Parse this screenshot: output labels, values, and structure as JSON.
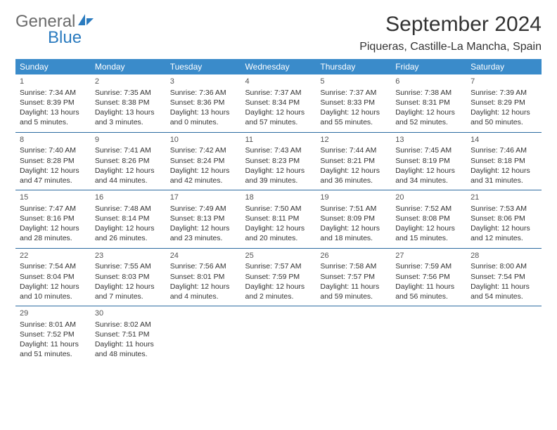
{
  "brand": {
    "part1": "General",
    "part2": "Blue"
  },
  "title": "September 2024",
  "location": "Piqueras, Castille-La Mancha, Spain",
  "header_bg": "#3a8bca",
  "header_fg": "#ffffff",
  "rule_color": "#2b6aa0",
  "weekdays": [
    "Sunday",
    "Monday",
    "Tuesday",
    "Wednesday",
    "Thursday",
    "Friday",
    "Saturday"
  ],
  "weeks": [
    [
      {
        "n": "1",
        "sr": "7:34 AM",
        "ss": "8:39 PM",
        "dl": "13 hours and 5 minutes."
      },
      {
        "n": "2",
        "sr": "7:35 AM",
        "ss": "8:38 PM",
        "dl": "13 hours and 3 minutes."
      },
      {
        "n": "3",
        "sr": "7:36 AM",
        "ss": "8:36 PM",
        "dl": "13 hours and 0 minutes."
      },
      {
        "n": "4",
        "sr": "7:37 AM",
        "ss": "8:34 PM",
        "dl": "12 hours and 57 minutes."
      },
      {
        "n": "5",
        "sr": "7:37 AM",
        "ss": "8:33 PM",
        "dl": "12 hours and 55 minutes."
      },
      {
        "n": "6",
        "sr": "7:38 AM",
        "ss": "8:31 PM",
        "dl": "12 hours and 52 minutes."
      },
      {
        "n": "7",
        "sr": "7:39 AM",
        "ss": "8:29 PM",
        "dl": "12 hours and 50 minutes."
      }
    ],
    [
      {
        "n": "8",
        "sr": "7:40 AM",
        "ss": "8:28 PM",
        "dl": "12 hours and 47 minutes."
      },
      {
        "n": "9",
        "sr": "7:41 AM",
        "ss": "8:26 PM",
        "dl": "12 hours and 44 minutes."
      },
      {
        "n": "10",
        "sr": "7:42 AM",
        "ss": "8:24 PM",
        "dl": "12 hours and 42 minutes."
      },
      {
        "n": "11",
        "sr": "7:43 AM",
        "ss": "8:23 PM",
        "dl": "12 hours and 39 minutes."
      },
      {
        "n": "12",
        "sr": "7:44 AM",
        "ss": "8:21 PM",
        "dl": "12 hours and 36 minutes."
      },
      {
        "n": "13",
        "sr": "7:45 AM",
        "ss": "8:19 PM",
        "dl": "12 hours and 34 minutes."
      },
      {
        "n": "14",
        "sr": "7:46 AM",
        "ss": "8:18 PM",
        "dl": "12 hours and 31 minutes."
      }
    ],
    [
      {
        "n": "15",
        "sr": "7:47 AM",
        "ss": "8:16 PM",
        "dl": "12 hours and 28 minutes."
      },
      {
        "n": "16",
        "sr": "7:48 AM",
        "ss": "8:14 PM",
        "dl": "12 hours and 26 minutes."
      },
      {
        "n": "17",
        "sr": "7:49 AM",
        "ss": "8:13 PM",
        "dl": "12 hours and 23 minutes."
      },
      {
        "n": "18",
        "sr": "7:50 AM",
        "ss": "8:11 PM",
        "dl": "12 hours and 20 minutes."
      },
      {
        "n": "19",
        "sr": "7:51 AM",
        "ss": "8:09 PM",
        "dl": "12 hours and 18 minutes."
      },
      {
        "n": "20",
        "sr": "7:52 AM",
        "ss": "8:08 PM",
        "dl": "12 hours and 15 minutes."
      },
      {
        "n": "21",
        "sr": "7:53 AM",
        "ss": "8:06 PM",
        "dl": "12 hours and 12 minutes."
      }
    ],
    [
      {
        "n": "22",
        "sr": "7:54 AM",
        "ss": "8:04 PM",
        "dl": "12 hours and 10 minutes."
      },
      {
        "n": "23",
        "sr": "7:55 AM",
        "ss": "8:03 PM",
        "dl": "12 hours and 7 minutes."
      },
      {
        "n": "24",
        "sr": "7:56 AM",
        "ss": "8:01 PM",
        "dl": "12 hours and 4 minutes."
      },
      {
        "n": "25",
        "sr": "7:57 AM",
        "ss": "7:59 PM",
        "dl": "12 hours and 2 minutes."
      },
      {
        "n": "26",
        "sr": "7:58 AM",
        "ss": "7:57 PM",
        "dl": "11 hours and 59 minutes."
      },
      {
        "n": "27",
        "sr": "7:59 AM",
        "ss": "7:56 PM",
        "dl": "11 hours and 56 minutes."
      },
      {
        "n": "28",
        "sr": "8:00 AM",
        "ss": "7:54 PM",
        "dl": "11 hours and 54 minutes."
      }
    ],
    [
      {
        "n": "29",
        "sr": "8:01 AM",
        "ss": "7:52 PM",
        "dl": "11 hours and 51 minutes."
      },
      {
        "n": "30",
        "sr": "8:02 AM",
        "ss": "7:51 PM",
        "dl": "11 hours and 48 minutes."
      },
      null,
      null,
      null,
      null,
      null
    ]
  ],
  "labels": {
    "sunrise": "Sunrise:",
    "sunset": "Sunset:",
    "daylight": "Daylight:"
  }
}
